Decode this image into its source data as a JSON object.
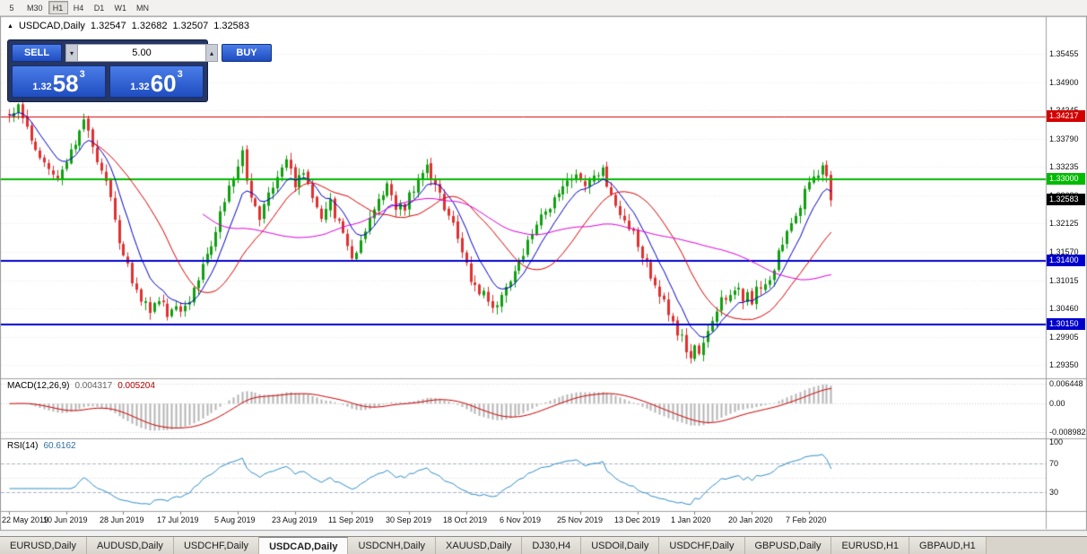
{
  "toolbar": {
    "periods": [
      {
        "label": "5",
        "active": false
      },
      {
        "label": "M30",
        "active": false
      },
      {
        "label": "H1",
        "active": true
      },
      {
        "label": "H4",
        "active": false
      },
      {
        "label": "D1",
        "active": false
      },
      {
        "label": "W1",
        "active": false
      },
      {
        "label": "MN",
        "active": false
      }
    ]
  },
  "icons": {
    "panel_collapse": "▲",
    "spin_up": "▴",
    "spin_down": "▾"
  },
  "chart": {
    "symbol_title": "USDCAD,Daily",
    "ohlc": {
      "open": "1.32547",
      "high": "1.32682",
      "low": "1.32507",
      "close": "1.32583"
    },
    "trade_panel": {
      "sell_label": "SELL",
      "buy_label": "BUY",
      "volume": "5.00",
      "bid_small": "1.32",
      "bid_big": "58",
      "bid_sup": "3",
      "ask_small": "1.32",
      "ask_big": "60",
      "ask_sup": "3"
    },
    "price_axis": [
      "1.35455",
      "1.34900",
      "1.34345",
      "1.33790",
      "1.33235",
      "1.32680",
      "1.32125",
      "1.31570",
      "1.31015",
      "1.30460",
      "1.29905",
      "1.29350"
    ],
    "levels": [
      {
        "value": 1.34217,
        "label": "1.34217",
        "color": "#d40000",
        "width": 1
      },
      {
        "value": 1.33,
        "label": "1.33000",
        "color": "#00bb00",
        "width": 2
      },
      {
        "value": 1.314,
        "label": "1.31400",
        "color": "#0000cc",
        "width": 2
      },
      {
        "value": 1.3015,
        "label": "1.30150",
        "color": "#0000cc",
        "width": 2
      }
    ],
    "current_price": {
      "value": 1.32583,
      "label": "1.32583",
      "color": "#000000"
    },
    "dates": [
      "22 May 2019",
      "10 Jun 2019",
      "28 Jun 2019",
      "17 Jul 2019",
      "5 Aug 2019",
      "23 Aug 2019",
      "11 Sep 2019",
      "30 Sep 2019",
      "18 Oct 2019",
      "6 Nov 2019",
      "25 Nov 2019",
      "13 Dec 2019",
      "1 Jan 2020",
      "20 Jan 2020",
      "7 Feb 2020"
    ],
    "macd": {
      "name": "MACD(12,26,9)",
      "value_main": "0.004317",
      "value_signal": "0.005204",
      "ticks": [
        "0.006448",
        "0.00",
        "-0.008982"
      ]
    },
    "rsi": {
      "name": "RSI(14)",
      "value": "60.6162",
      "ticks": [
        "100",
        "70",
        "30"
      ]
    }
  },
  "chart_data": {
    "type": "candlestick",
    "symbol": "USDCAD",
    "timeframe": "Daily",
    "bar_count": 188,
    "seed": 12,
    "last_close": 1.32583,
    "y_range_main": [
      1.2913,
      1.3584
    ],
    "macd_range": [
      -0.0105,
      0.0075
    ],
    "rsi_levels": [
      70,
      50,
      30
    ],
    "ma_periods": {
      "fast": 8,
      "mid": 20,
      "slow": 45
    },
    "colors": {
      "up": "#0fa00f",
      "down": "#e03030",
      "ma_fast": "#0000cc",
      "ma_mid": "#dd0000",
      "ma_slow": "#dd00dd",
      "macd_hist": "#b4b4b4",
      "macd_signal": "#cc0000",
      "rsi_line": "#2f8fc8"
    },
    "price_path": [
      [
        0,
        1.343
      ],
      [
        2,
        1.3445
      ],
      [
        5,
        1.338
      ],
      [
        8,
        1.333
      ],
      [
        11,
        1.331
      ],
      [
        14,
        1.336
      ],
      [
        17,
        1.3415
      ],
      [
        19,
        1.337
      ],
      [
        22,
        1.329
      ],
      [
        24,
        1.322
      ],
      [
        26,
        1.315
      ],
      [
        29,
        1.308
      ],
      [
        32,
        1.3045
      ],
      [
        34,
        1.307
      ],
      [
        36,
        1.304
      ],
      [
        38,
        1.3055
      ],
      [
        40,
        1.3045
      ],
      [
        43,
        1.311
      ],
      [
        46,
        1.318
      ],
      [
        48,
        1.323
      ],
      [
        50,
        1.328
      ],
      [
        52,
        1.333
      ],
      [
        53,
        1.3345
      ],
      [
        55,
        1.327
      ],
      [
        57,
        1.323
      ],
      [
        59,
        1.327
      ],
      [
        61,
        1.33
      ],
      [
        63,
        1.334
      ],
      [
        65,
        1.329
      ],
      [
        67,
        1.331
      ],
      [
        69,
        1.326
      ],
      [
        71,
        1.323
      ],
      [
        73,
        1.325
      ],
      [
        75,
        1.321
      ],
      [
        77,
        1.316
      ],
      [
        78,
        1.314
      ],
      [
        80,
        1.317
      ],
      [
        82,
        1.323
      ],
      [
        84,
        1.325
      ],
      [
        86,
        1.328
      ],
      [
        88,
        1.325
      ],
      [
        90,
        1.324
      ],
      [
        93,
        1.331
      ],
      [
        95,
        1.333
      ],
      [
        97,
        1.329
      ],
      [
        99,
        1.325
      ],
      [
        101,
        1.321
      ],
      [
        103,
        1.316
      ],
      [
        104,
        1.313
      ],
      [
        106,
        1.309
      ],
      [
        109,
        1.306
      ],
      [
        111,
        1.3045
      ],
      [
        113,
        1.308
      ],
      [
        115,
        1.312
      ],
      [
        117,
        1.316
      ],
      [
        119,
        1.319
      ],
      [
        121,
        1.322
      ],
      [
        123,
        1.325
      ],
      [
        125,
        1.327
      ],
      [
        127,
        1.329
      ],
      [
        129,
        1.33
      ],
      [
        131,
        1.328
      ],
      [
        133,
        1.331
      ],
      [
        135,
        1.332
      ],
      [
        137,
        1.327
      ],
      [
        139,
        1.324
      ],
      [
        141,
        1.321
      ],
      [
        143,
        1.317
      ],
      [
        145,
        1.313
      ],
      [
        147,
        1.31
      ],
      [
        149,
        1.306
      ],
      [
        151,
        1.302
      ],
      [
        153,
        1.299
      ],
      [
        155,
        1.2955
      ],
      [
        156,
        1.2965
      ],
      [
        157,
        1.295
      ],
      [
        159,
        1.3
      ],
      [
        161,
        1.304
      ],
      [
        163,
        1.3075
      ],
      [
        165,
        1.309
      ],
      [
        167,
        1.307
      ],
      [
        169,
        1.3065
      ],
      [
        171,
        1.309
      ],
      [
        173,
        1.311
      ],
      [
        175,
        1.315
      ],
      [
        177,
        1.319
      ],
      [
        179,
        1.323
      ],
      [
        181,
        1.327
      ],
      [
        183,
        1.33
      ],
      [
        185,
        1.3325
      ],
      [
        186,
        1.33
      ],
      [
        187,
        1.32583
      ]
    ]
  },
  "tabs": [
    {
      "label": "EURUSD,Daily",
      "active": false
    },
    {
      "label": "AUDUSD,Daily",
      "active": false
    },
    {
      "label": "USDCHF,Daily",
      "active": false
    },
    {
      "label": "USDCAD,Daily",
      "active": true
    },
    {
      "label": "USDCNH,Daily",
      "active": false
    },
    {
      "label": "XAUUSD,Daily",
      "active": false
    },
    {
      "label": "DJ30,H4",
      "active": false
    },
    {
      "label": "USDOil,Daily",
      "active": false
    },
    {
      "label": "USDCHF,Daily",
      "active": false
    },
    {
      "label": "GBPUSD,Daily",
      "active": false
    },
    {
      "label": "EURUSD,H1",
      "active": false
    },
    {
      "label": "GBPAUD,H1",
      "active": false
    }
  ]
}
